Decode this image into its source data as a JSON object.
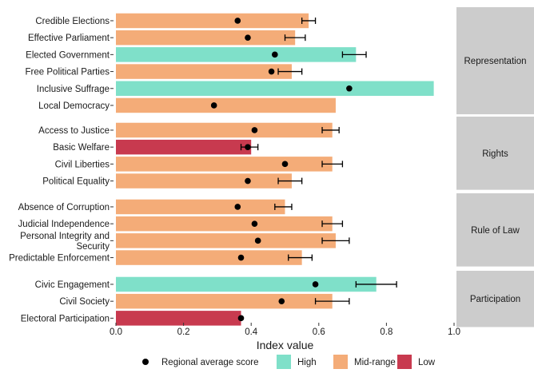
{
  "chart_data": {
    "type": "bar",
    "orientation": "horizontal",
    "xlabel": "Index value",
    "xlim": [
      0,
      1.0
    ],
    "xticks": [
      "0.0",
      "0.2",
      "0.4",
      "0.6",
      "0.8",
      "1.0"
    ],
    "colors": {
      "High": "#7fe0c9",
      "Mid-range": "#f4ac78",
      "Low": "#c83a4f",
      "point": "#000000",
      "strip": "#cccccc"
    },
    "legend": {
      "placement": "bottom",
      "point_label": "Regional average score",
      "items": [
        "High",
        "Mid-range",
        "Low"
      ]
    },
    "groups": [
      {
        "name": "Representation",
        "items": [
          {
            "label": "Credible Elections",
            "value": 0.57,
            "err": [
              0.55,
              0.59
            ],
            "avg": 0.36,
            "level": "Mid-range"
          },
          {
            "label": "Effective Parliament",
            "value": 0.53,
            "err": [
              0.5,
              0.56
            ],
            "avg": 0.39,
            "level": "Mid-range"
          },
          {
            "label": "Elected Government",
            "value": 0.71,
            "err": [
              0.67,
              0.74
            ],
            "avg": 0.47,
            "level": "High"
          },
          {
            "label": "Free Political Parties",
            "value": 0.52,
            "err": [
              0.48,
              0.55
            ],
            "avg": 0.46,
            "level": "Mid-range"
          },
          {
            "label": "Inclusive Suffrage",
            "value": 0.94,
            "err": null,
            "avg": 0.69,
            "level": "High"
          },
          {
            "label": "Local Democracy",
            "value": 0.65,
            "err": null,
            "avg": 0.29,
            "level": "Mid-range"
          }
        ]
      },
      {
        "name": "Rights",
        "items": [
          {
            "label": "Access to Justice",
            "value": 0.64,
            "err": [
              0.61,
              0.66
            ],
            "avg": 0.41,
            "level": "Mid-range"
          },
          {
            "label": "Basic Welfare",
            "value": 0.4,
            "err": [
              0.37,
              0.42
            ],
            "avg": 0.39,
            "level": "Low"
          },
          {
            "label": "Civil Liberties",
            "value": 0.64,
            "err": [
              0.61,
              0.67
            ],
            "avg": 0.5,
            "level": "Mid-range"
          },
          {
            "label": "Political Equality",
            "value": 0.52,
            "err": [
              0.48,
              0.55
            ],
            "avg": 0.39,
            "level": "Mid-range"
          }
        ]
      },
      {
        "name": "Rule of Law",
        "items": [
          {
            "label": "Absence of Corruption",
            "value": 0.5,
            "err": [
              0.47,
              0.52
            ],
            "avg": 0.36,
            "level": "Mid-range"
          },
          {
            "label": "Judicial Independence",
            "value": 0.64,
            "err": [
              0.61,
              0.67
            ],
            "avg": 0.41,
            "level": "Mid-range"
          },
          {
            "label": "Personal Integrity and Security",
            "label_lines": [
              "Personal Integrity and",
              "Security"
            ],
            "value": 0.65,
            "err": [
              0.61,
              0.69
            ],
            "avg": 0.42,
            "level": "Mid-range"
          },
          {
            "label": "Predictable Enforcement",
            "value": 0.55,
            "err": [
              0.51,
              0.58
            ],
            "avg": 0.37,
            "level": "Mid-range"
          }
        ]
      },
      {
        "name": "Participation",
        "items": [
          {
            "label": "Civic Engagement",
            "value": 0.77,
            "err": [
              0.71,
              0.83
            ],
            "avg": 0.59,
            "level": "High"
          },
          {
            "label": "Civil Society",
            "value": 0.64,
            "err": [
              0.59,
              0.69
            ],
            "avg": 0.49,
            "level": "Mid-range"
          },
          {
            "label": "Electoral Participation",
            "value": 0.37,
            "err": null,
            "avg": 0.37,
            "level": "Low"
          }
        ]
      }
    ]
  }
}
